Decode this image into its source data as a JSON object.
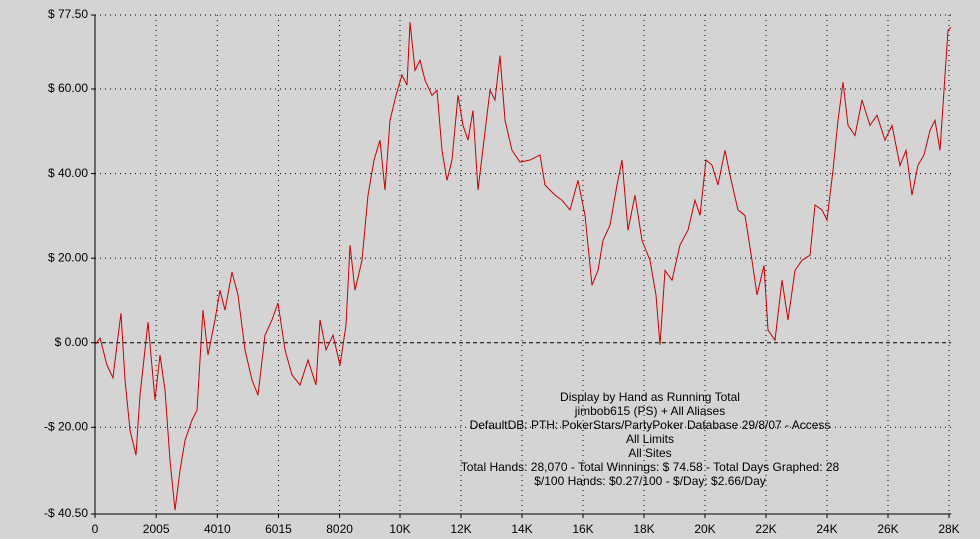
{
  "chart_data": {
    "type": "line",
    "annotations": [
      "Display by Hand as Running Total",
      "jimbob615 (PS) + All Aliases",
      "DefaultDB: PTH: PokerStars/PartyPoker Database 29/8/07 - Access",
      "All Limits",
      "All Sites",
      "Total Hands: 28,070 - Total Winnings: $ 74.58 - Total Days Graphed: 28",
      "$/100 Hands: $0.27/100 - $/Day: $2.66/Day"
    ],
    "xlim": [
      0,
      28070
    ],
    "ylim": [
      -40.5,
      77.5
    ],
    "grid": true,
    "xticks": [
      0,
      2005,
      4010,
      6015,
      8020,
      {
        "value": 10000,
        "label": "10K"
      },
      {
        "value": 12000,
        "label": "12K"
      },
      {
        "value": 14000,
        "label": "14K"
      },
      {
        "value": 16000,
        "label": "16K"
      },
      {
        "value": 18000,
        "label": "18K"
      },
      {
        "value": 20000,
        "label": "20K"
      },
      {
        "value": 22000,
        "label": "22K"
      },
      {
        "value": 24000,
        "label": "24K"
      },
      {
        "value": 26000,
        "label": "26K"
      },
      {
        "value": 28000,
        "label": "28K"
      }
    ],
    "yticks": [
      {
        "value": -40.5,
        "label": "-$ 40.50"
      },
      {
        "value": -20,
        "label": "-$ 20.00"
      },
      {
        "value": 0,
        "label": "$ 0.00"
      },
      {
        "value": 20,
        "label": "$ 20.00"
      },
      {
        "value": 40,
        "label": "$ 40.00"
      },
      {
        "value": 60,
        "label": "$ 60.00"
      },
      {
        "value": 77.5,
        "label": "$ 77.50"
      }
    ],
    "x": [
      0,
      164,
      393,
      590,
      721,
      852,
      984,
      1148,
      1344,
      1475,
      1738,
      1967,
      2131,
      2295,
      2459,
      2623,
      2787,
      2951,
      3180,
      3344,
      3541,
      3705,
      3934,
      4098,
      4262,
      4492,
      4689,
      4918,
      5148,
      5344,
      5574,
      5803,
      6000,
      6230,
      6459,
      6721,
      6984,
      7246,
      7377,
      7574,
      7803,
      8033,
      8230,
      8361,
      8525,
      8754,
      8951,
      9148,
      9344,
      9508,
      9672,
      9869,
      10066,
      10230,
      10328,
      10492,
      10656,
      10820,
      11049,
      11213,
      11377,
      11541,
      11705,
      11902,
      12066,
      12230,
      12393,
      12557,
      12754,
      12951,
      13115,
      13279,
      13443,
      13672,
      13934,
      14262,
      14590,
      14754,
      15082,
      15311,
      15574,
      15836,
      16066,
      16295,
      16492,
      16656,
      16885,
      17115,
      17279,
      17475,
      17705,
      17934,
      18197,
      18393,
      18525,
      18689,
      18918,
      19180,
      19443,
      19672,
      19836,
      20033,
      20230,
      20426,
      20656,
      20820,
      21082,
      21311,
      21541,
      21705,
      21934,
      22066,
      22295,
      22525,
      22721,
      22951,
      23180,
      23443,
      23607,
      23836,
      24000,
      24197,
      24361,
      24525,
      24689,
      24918,
      25148,
      25410,
      25639,
      25902,
      26131,
      26393,
      26590,
      26787,
      26984,
      27180,
      27377,
      27541,
      27705,
      27836,
      27967,
      28033,
      28070
    ],
    "series": [
      {
        "color": "#cc0000",
        "values": [
          -0.5,
          1.1,
          -5.3,
          -8.3,
          -0.5,
          7,
          -8.8,
          -20.7,
          -26.6,
          -12.4,
          4.9,
          -13.5,
          -2.9,
          -11.2,
          -27.8,
          -39.6,
          -30.2,
          -23.1,
          -18.3,
          -16,
          7.7,
          -2.9,
          5.4,
          12.4,
          7.7,
          16.7,
          11.3,
          -1.7,
          -8.8,
          -12.4,
          1.8,
          5.4,
          9.4,
          -1.7,
          -7.6,
          -10,
          -4.1,
          -10,
          5.4,
          -1.7,
          1.8,
          -5.3,
          4.2,
          23.1,
          12.4,
          19.5,
          34.9,
          43.2,
          47.9,
          36.1,
          52.6,
          58.5,
          63.3,
          60.9,
          75.8,
          64.4,
          66.8,
          62.1,
          58.5,
          59.7,
          45.5,
          38.4,
          43.2,
          58.5,
          51.4,
          47.9,
          54.9,
          36.1,
          47.9,
          59.7,
          57.4,
          67.9,
          52.6,
          45.5,
          42.7,
          43.2,
          44.4,
          37.3,
          34.9,
          33.7,
          31.4,
          38.4,
          30.1,
          13.6,
          17.1,
          24.2,
          27.8,
          37.3,
          43.2,
          26.6,
          34.9,
          24.2,
          19.5,
          11.3,
          -0.5,
          17.1,
          14.8,
          23.1,
          26.6,
          33.7,
          30.1,
          43.2,
          42,
          37.3,
          45.5,
          39.6,
          31.4,
          30.1,
          19.5,
          11.3,
          18.3,
          3,
          0.6,
          14.8,
          5.4,
          17.1,
          19.5,
          20.7,
          32.6,
          31.4,
          29,
          40.8,
          52.6,
          61.6,
          51.4,
          49,
          57.4,
          51.4,
          53.8,
          47.9,
          51.4,
          41.9,
          45.5,
          34.9,
          42,
          44.4,
          50.2,
          52.6,
          45.5,
          59.7,
          73.9,
          74.3,
          74.58
        ]
      }
    ]
  }
}
